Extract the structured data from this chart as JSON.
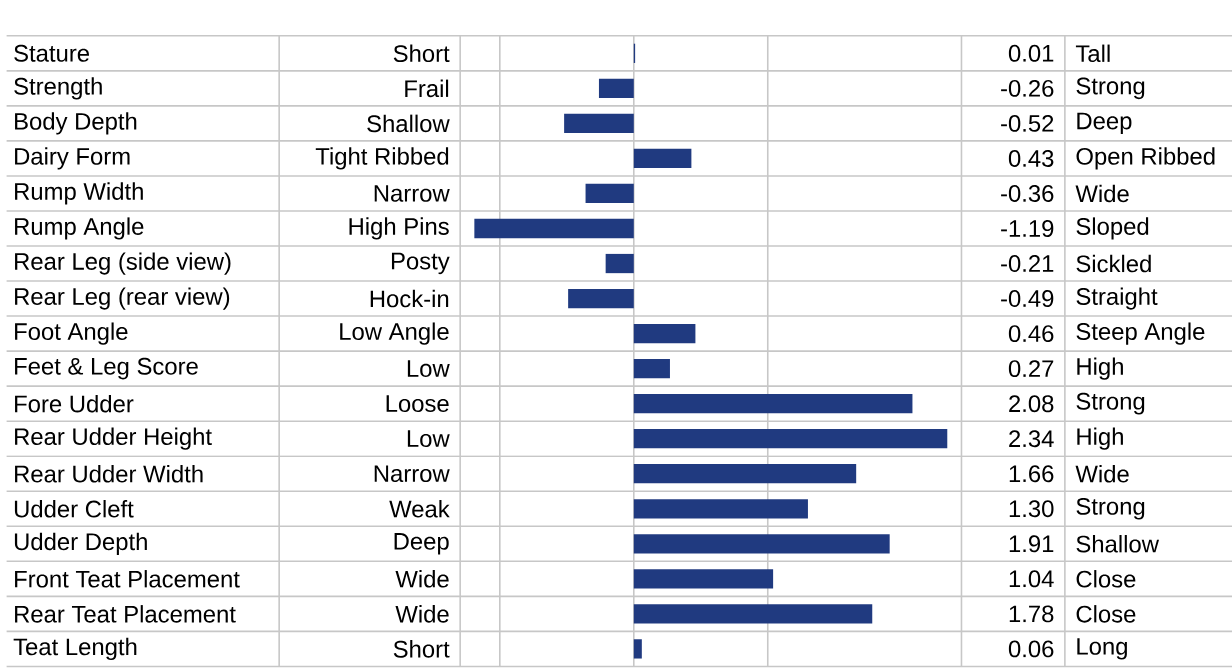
{
  "chart_data": {
    "type": "bar",
    "orientation": "horizontal",
    "categories": [
      "Stature",
      "Strength",
      "Body Depth",
      "Dairy Form",
      "Rump Width",
      "Rump Angle",
      "Rear Leg (side view)",
      "Rear Leg (rear view)",
      "Foot Angle",
      "Feet & Leg Score",
      "Fore Udder",
      "Rear Udder Height",
      "Rear Udder Width",
      "Udder Cleft",
      "Udder Depth",
      "Front Teat Placement",
      "Rear Teat Placement",
      "Teat Length"
    ],
    "values": [
      0.01,
      -0.26,
      -0.52,
      0.43,
      -0.36,
      -1.19,
      -0.21,
      -0.49,
      0.46,
      0.27,
      2.08,
      2.34,
      1.66,
      1.3,
      1.91,
      1.04,
      1.78,
      0.06
    ],
    "value_labels": [
      "0.01",
      "-0.26",
      "-0.52",
      "0.43",
      "-0.36",
      "-1.19",
      "-0.21",
      "-0.49",
      "0.46",
      "0.27",
      "2.08",
      "2.34",
      "1.66",
      "1.30",
      "1.91",
      "1.04",
      "1.78",
      "0.06"
    ],
    "color": "#203a80",
    "xticks": [
      {
        "value": -1,
        "label": null
      },
      {
        "value": 0,
        "label": null
      },
      {
        "value": 1,
        "label": null
      }
    ],
    "grid": "x",
    "annotations": [
      "Short",
      "Frail",
      "Shallow",
      "Tight Ribbed",
      "Narrow",
      "High Pins",
      "Posty",
      "Hock-in",
      "Low Angle",
      "Low",
      "Loose",
      "Low",
      "Narrow",
      "Weak",
      "Deep",
      "Wide",
      "Wide",
      "Short",
      "Tall",
      "Strong",
      "Deep",
      "Open Ribbed",
      "Wide",
      "Sloped",
      "Sickled",
      "Straight",
      "Steep Angle",
      "High",
      "Strong",
      "High",
      "Wide",
      "Strong",
      "Shallow",
      "Close",
      "Close",
      "Long"
    ]
  }
}
